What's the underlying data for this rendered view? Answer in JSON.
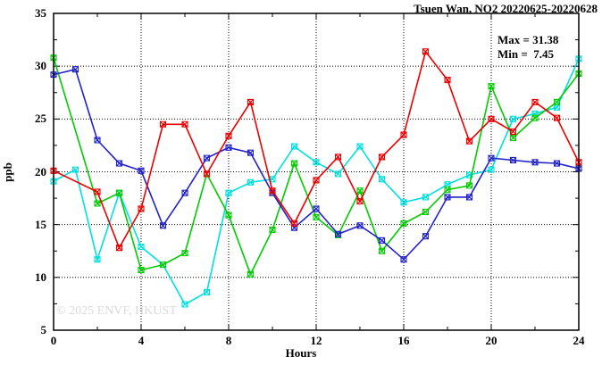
{
  "title": "Tsuen Wan, NO2 20220625-20220628",
  "annotation": {
    "max_label": "Max = 31.38",
    "min_label": "Min =  7.45"
  },
  "watermark": "© 2025 ENVF, HKUST",
  "chart_data": {
    "type": "line",
    "title": "Tsuen Wan, NO2 20220625-20220628",
    "xlabel": "Hours",
    "ylabel": "ppb",
    "xlim": [
      0,
      24
    ],
    "ylim": [
      5,
      35
    ],
    "xticks": [
      0,
      4,
      8,
      12,
      16,
      20,
      24
    ],
    "yticks": [
      5,
      10,
      15,
      20,
      25,
      30,
      35
    ],
    "grid": true,
    "legend_position": "none",
    "max_value": 31.38,
    "min_value": 7.45,
    "x": [
      0,
      1,
      2,
      3,
      4,
      5,
      6,
      7,
      8,
      9,
      10,
      11,
      12,
      13,
      14,
      15,
      16,
      17,
      18,
      19,
      20,
      21,
      22,
      23,
      24
    ],
    "series": [
      {
        "name": "cyan-series",
        "color": "#00e0e0",
        "values": [
          19.1,
          20.2,
          11.7,
          18.0,
          12.9,
          11.2,
          7.45,
          8.6,
          18.0,
          19.0,
          19.3,
          22.4,
          20.9,
          19.8,
          22.4,
          19.3,
          17.1,
          17.6,
          18.8,
          19.7,
          20.2,
          25.0,
          25.5,
          26.1,
          30.7
        ]
      },
      {
        "name": "green-series",
        "color": "#00cc00",
        "values": [
          30.8,
          null,
          17.0,
          18.0,
          10.7,
          11.2,
          12.3,
          19.8,
          15.9,
          10.3,
          14.5,
          20.8,
          15.7,
          14.0,
          18.2,
          12.5,
          15.1,
          16.2,
          18.3,
          18.7,
          28.1,
          23.2,
          25.1,
          26.6,
          29.3
        ]
      },
      {
        "name": "blue-series",
        "color": "#2222cc",
        "values": [
          29.2,
          29.7,
          23.0,
          20.8,
          20.1,
          14.9,
          18.0,
          21.3,
          22.3,
          21.8,
          18.0,
          14.7,
          16.5,
          14.1,
          14.9,
          13.5,
          11.7,
          13.9,
          17.6,
          17.6,
          21.3,
          21.1,
          20.9,
          20.8,
          20.3
        ]
      },
      {
        "name": "red-series",
        "color": "#ee0000",
        "values": [
          20.1,
          null,
          18.1,
          12.8,
          16.5,
          24.5,
          24.5,
          19.8,
          23.4,
          26.6,
          18.2,
          15.1,
          19.2,
          21.4,
          17.2,
          21.4,
          23.5,
          31.38,
          28.7,
          22.9,
          25.0,
          23.8,
          26.6,
          25.1,
          20.9
        ]
      }
    ]
  }
}
